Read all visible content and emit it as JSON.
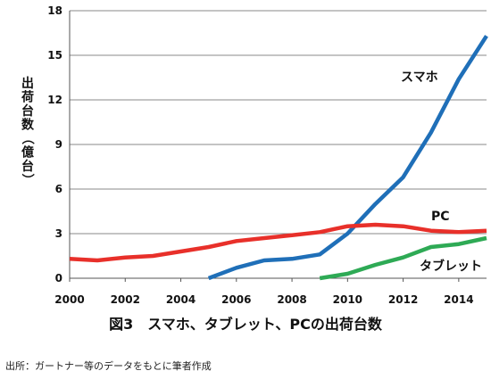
{
  "chart_data": {
    "type": "line",
    "title": "図3　スマホ、タブレット、PCの出荷台数",
    "ylabel": "出荷台数（億台）",
    "xlabel": "",
    "xlim": [
      2000,
      2015
    ],
    "ylim": [
      0,
      18
    ],
    "x_ticks": [
      "2000",
      "2002",
      "2004",
      "2006",
      "2008",
      "2010",
      "2012",
      "2014"
    ],
    "y_ticks": [
      "0",
      "3",
      "6",
      "9",
      "12",
      "15",
      "18"
    ],
    "grid": "horizontal",
    "series": [
      {
        "name": "スマホ",
        "color": "#1f6fb8",
        "x": [
          2005,
          2006,
          2007,
          2008,
          2009,
          2010,
          2011,
          2012,
          2013,
          2014,
          2015
        ],
        "y": [
          0.0,
          0.7,
          1.2,
          1.3,
          1.6,
          3.0,
          5.0,
          6.8,
          9.8,
          13.4,
          16.3
        ]
      },
      {
        "name": "PC",
        "color": "#e8302a",
        "x": [
          2000,
          2001,
          2002,
          2003,
          2004,
          2005,
          2006,
          2007,
          2008,
          2009,
          2010,
          2011,
          2012,
          2013,
          2014,
          2015
        ],
        "y": [
          1.3,
          1.2,
          1.4,
          1.5,
          1.8,
          2.1,
          2.5,
          2.7,
          2.9,
          3.1,
          3.5,
          3.6,
          3.5,
          3.2,
          3.1,
          3.2
        ]
      },
      {
        "name": "タブレット",
        "color": "#2eaa55",
        "x": [
          2009,
          2010,
          2011,
          2012,
          2013,
          2014,
          2015
        ],
        "y": [
          0.0,
          0.3,
          0.9,
          1.4,
          2.1,
          2.3,
          2.7
        ]
      }
    ]
  },
  "source_note": "出所：ガートナー等のデータをもとに筆者作成"
}
